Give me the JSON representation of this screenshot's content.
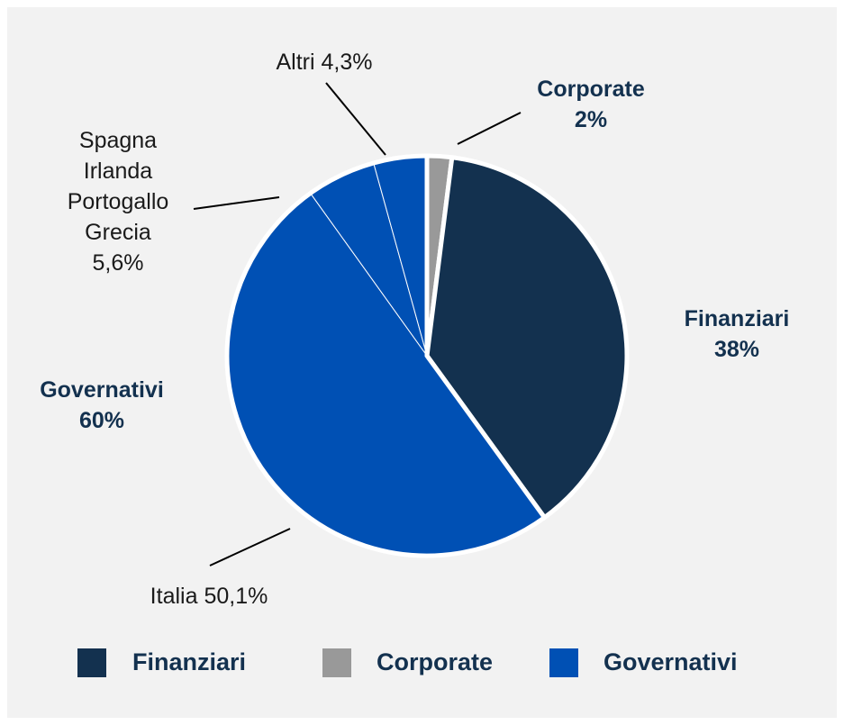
{
  "chart_data": {
    "type": "pie",
    "categories": [
      "Finanziari",
      "Corporate",
      "Governativi"
    ],
    "values": [
      38,
      2,
      60
    ],
    "value_labels": [
      "38%",
      "2%",
      "60%"
    ],
    "colors": [
      "#13314f",
      "#999999",
      "#0050b4"
    ],
    "breakdown": {
      "categories": [
        "Italia",
        "Spagna\nIrlanda\nPortogallo\nGrecia",
        "Altri"
      ],
      "values": [
        50.1,
        5.6,
        4.3
      ],
      "value_labels": [
        "50,1%",
        "5,6%",
        "4,3%"
      ]
    }
  }
}
